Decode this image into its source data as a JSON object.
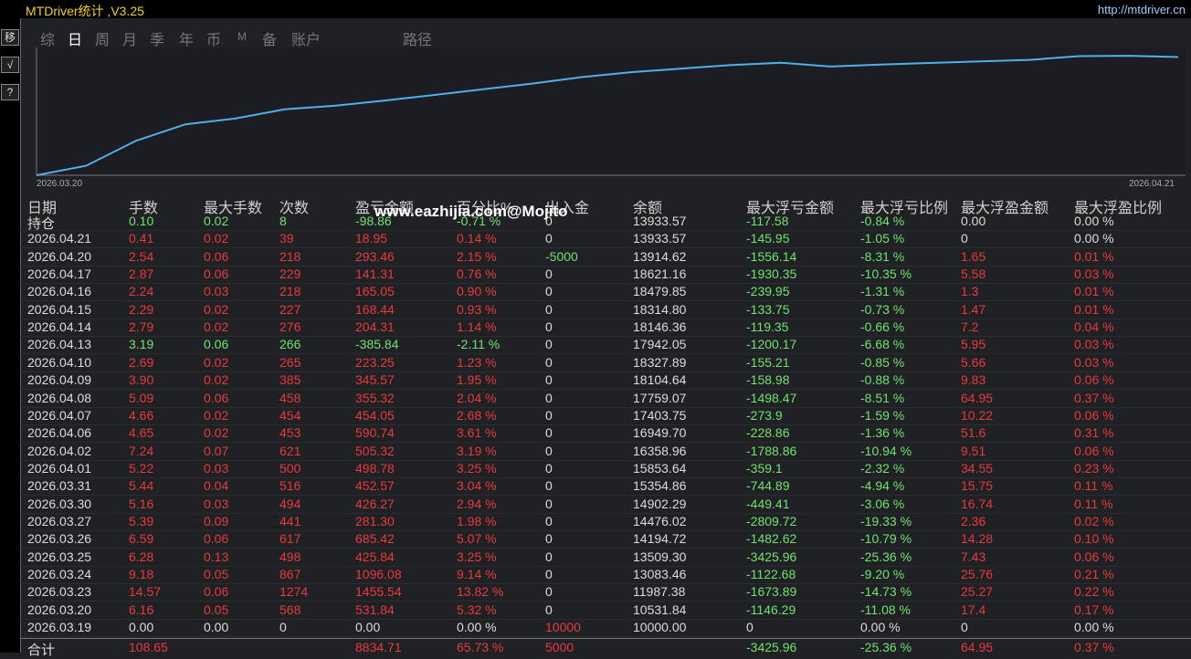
{
  "header": {
    "title": "MTDriver统计 ,V3.25",
    "url": "http://mtdriver.cn"
  },
  "toolbar": [
    "移",
    "√",
    "?"
  ],
  "tabs": [
    "综",
    "日",
    "周",
    "月",
    "季",
    "年",
    "币",
    "M",
    "备",
    "账户",
    "路径"
  ],
  "active_tab": 1,
  "curve": {
    "x_start": "2026.03.20",
    "x_end": "2026.04.21",
    "color": "#4fb0e8",
    "ylim": [
      0,
      70
    ],
    "values": [
      0,
      5.3,
      19.1,
      28.3,
      31.5,
      36.6,
      38.6,
      41.5,
      44.6,
      47.8,
      51.0,
      54.6,
      57.3,
      59.3,
      61.3,
      62.5,
      60.4,
      61.5,
      62.4,
      63.3,
      64.1,
      66.2,
      66.4,
      65.7
    ]
  },
  "watermark": "www.eazhijia.com@Mojito",
  "table": {
    "columns": [
      "日期",
      "手数",
      "最大手数",
      "次数",
      "盈亏金额",
      "百分比%",
      "出入金",
      "余额",
      "最大浮亏金额",
      "最大浮亏比例",
      "最大浮盈金额",
      "最大浮盈比例"
    ],
    "rows": [
      [
        "持仓",
        "0.10",
        "0.02",
        "8",
        "-98.86",
        "-0.71 %",
        "0",
        "13933.57",
        "-117.58",
        "-0.84 %",
        "0.00",
        "0.00 %"
      ],
      [
        "2026.04.21",
        "0.41",
        "0.02",
        "39",
        "18.95",
        "0.14 %",
        "0",
        "13933.57",
        "-145.95",
        "-1.05 %",
        "0",
        "0.00 %"
      ],
      [
        "2026.04.20",
        "2.54",
        "0.06",
        "218",
        "293.46",
        "2.15 %",
        "-5000",
        "13914.62",
        "-1556.14",
        "-8.31 %",
        "1.65",
        "0.01 %"
      ],
      [
        "2026.04.17",
        "2.87",
        "0.06",
        "229",
        "141.31",
        "0.76 %",
        "0",
        "18621.16",
        "-1930.35",
        "-10.35 %",
        "5.58",
        "0.03 %"
      ],
      [
        "2026.04.16",
        "2.24",
        "0.03",
        "218",
        "165.05",
        "0.90 %",
        "0",
        "18479.85",
        "-239.95",
        "-1.31 %",
        "1.3",
        "0.01 %"
      ],
      [
        "2026.04.15",
        "2.29",
        "0.02",
        "227",
        "168.44",
        "0.93 %",
        "0",
        "18314.80",
        "-133.75",
        "-0.73 %",
        "1.47",
        "0.01 %"
      ],
      [
        "2026.04.14",
        "2.79",
        "0.02",
        "276",
        "204.31",
        "1.14 %",
        "0",
        "18146.36",
        "-119.35",
        "-0.66 %",
        "7.2",
        "0.04 %"
      ],
      [
        "2026.04.13",
        "3.19",
        "0.06",
        "266",
        "-385.84",
        "-2.11 %",
        "0",
        "17942.05",
        "-1200.17",
        "-6.68 %",
        "5.95",
        "0.03 %"
      ],
      [
        "2026.04.10",
        "2.69",
        "0.02",
        "265",
        "223.25",
        "1.23 %",
        "0",
        "18327.89",
        "-155.21",
        "-0.85 %",
        "5.66",
        "0.03 %"
      ],
      [
        "2026.04.09",
        "3.90",
        "0.02",
        "385",
        "345.57",
        "1.95 %",
        "0",
        "18104.64",
        "-158.98",
        "-0.88 %",
        "9.83",
        "0.06 %"
      ],
      [
        "2026.04.08",
        "5.09",
        "0.06",
        "458",
        "355.32",
        "2.04 %",
        "0",
        "17759.07",
        "-1498.47",
        "-8.51 %",
        "64.95",
        "0.37 %"
      ],
      [
        "2026.04.07",
        "4.66",
        "0.02",
        "454",
        "454.05",
        "2.68 %",
        "0",
        "17403.75",
        "-273.9",
        "-1.59 %",
        "10.22",
        "0.06 %"
      ],
      [
        "2026.04.06",
        "4.65",
        "0.02",
        "453",
        "590.74",
        "3.61 %",
        "0",
        "16949.70",
        "-228.86",
        "-1.36 %",
        "51.6",
        "0.31 %"
      ],
      [
        "2026.04.02",
        "7.24",
        "0.07",
        "621",
        "505.32",
        "3.19 %",
        "0",
        "16358.96",
        "-1788.86",
        "-10.94 %",
        "9.51",
        "0.06 %"
      ],
      [
        "2026.04.01",
        "5.22",
        "0.03",
        "500",
        "498.78",
        "3.25 %",
        "0",
        "15853.64",
        "-359.1",
        "-2.32 %",
        "34.55",
        "0.23 %"
      ],
      [
        "2026.03.31",
        "5.44",
        "0.04",
        "516",
        "452.57",
        "3.04 %",
        "0",
        "15354.86",
        "-744.89",
        "-4.94 %",
        "15.75",
        "0.11 %"
      ],
      [
        "2026.03.30",
        "5.16",
        "0.03",
        "494",
        "426.27",
        "2.94 %",
        "0",
        "14902.29",
        "-449.41",
        "-3.06 %",
        "16.74",
        "0.11 %"
      ],
      [
        "2026.03.27",
        "5.39",
        "0.09",
        "441",
        "281.30",
        "1.98 %",
        "0",
        "14476.02",
        "-2809.72",
        "-19.33 %",
        "2.36",
        "0.02 %"
      ],
      [
        "2026.03.26",
        "6.59",
        "0.06",
        "617",
        "685.42",
        "5.07 %",
        "0",
        "14194.72",
        "-1482.62",
        "-10.79 %",
        "14.28",
        "0.10 %"
      ],
      [
        "2026.03.25",
        "6.28",
        "0.13",
        "498",
        "425.84",
        "3.25 %",
        "0",
        "13509.30",
        "-3425.96",
        "-25.36 %",
        "7.43",
        "0.06 %"
      ],
      [
        "2026.03.24",
        "9.18",
        "0.05",
        "867",
        "1096.08",
        "9.14 %",
        "0",
        "13083.46",
        "-1122.68",
        "-9.20 %",
        "25.76",
        "0.21 %"
      ],
      [
        "2026.03.23",
        "14.57",
        "0.06",
        "1274",
        "1455.54",
        "13.82 %",
        "0",
        "11987.38",
        "-1673.89",
        "-14.73 %",
        "25.27",
        "0.22 %"
      ],
      [
        "2026.03.20",
        "6.16",
        "0.05",
        "568",
        "531.84",
        "5.32 %",
        "0",
        "10531.84",
        "-1146.29",
        "-11.08 %",
        "17.4",
        "0.17 %"
      ],
      [
        "2026.03.19",
        "0.00",
        "0.00",
        "0",
        "0.00",
        "0.00 %",
        "10000",
        "10000.00",
        "0",
        "0.00 %",
        "0",
        "0.00 %"
      ],
      [
        "合计",
        "108.65",
        null,
        null,
        "8834.71",
        "65.73 %",
        "5000",
        null,
        "-3425.96",
        "-25.36 %",
        "64.95",
        "0.37 %"
      ]
    ]
  }
}
